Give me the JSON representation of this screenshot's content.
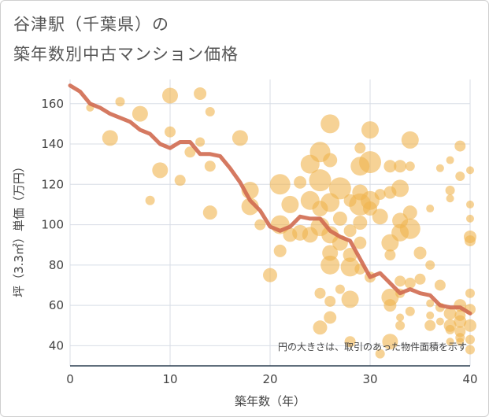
{
  "title_line1": "谷津駅（千葉県）の",
  "title_line2": "築年数別中古マンション価格",
  "chart_data": {
    "type": "scatter",
    "xlabel": "築年数（年）",
    "ylabel": "坪（3.3㎡）単価（万円）",
    "xlim": [
      0,
      40
    ],
    "ylim": [
      30,
      172
    ],
    "xticks": [
      0,
      10,
      20,
      30,
      40
    ],
    "yticks": [
      40,
      60,
      80,
      100,
      120,
      140,
      160
    ],
    "grid": true,
    "note": "円の大きさは、取引のあった物件面積を示す",
    "colors": {
      "points": "#f0b44e",
      "line": "#d06a50",
      "grid": "#d8dde6",
      "axis": "#2c3e50"
    },
    "series": [
      {
        "type": "scatter",
        "points": [
          {
            "x": 2,
            "y": 158,
            "s": 5
          },
          {
            "x": 4,
            "y": 143,
            "s": 10
          },
          {
            "x": 5,
            "y": 161,
            "s": 6
          },
          {
            "x": 7,
            "y": 155,
            "s": 10
          },
          {
            "x": 8,
            "y": 112,
            "s": 6
          },
          {
            "x": 9,
            "y": 127,
            "s": 10
          },
          {
            "x": 10,
            "y": 164,
            "s": 10
          },
          {
            "x": 10,
            "y": 146,
            "s": 7
          },
          {
            "x": 11,
            "y": 122,
            "s": 7
          },
          {
            "x": 12,
            "y": 136,
            "s": 7
          },
          {
            "x": 13,
            "y": 165,
            "s": 8
          },
          {
            "x": 13,
            "y": 141,
            "s": 6
          },
          {
            "x": 14,
            "y": 156,
            "s": 6
          },
          {
            "x": 14,
            "y": 129,
            "s": 7
          },
          {
            "x": 14,
            "y": 106,
            "s": 9
          },
          {
            "x": 17,
            "y": 143,
            "s": 10
          },
          {
            "x": 18,
            "y": 117,
            "s": 11
          },
          {
            "x": 18,
            "y": 109,
            "s": 11
          },
          {
            "x": 19,
            "y": 100,
            "s": 7
          },
          {
            "x": 20,
            "y": 75,
            "s": 9
          },
          {
            "x": 21,
            "y": 120,
            "s": 13
          },
          {
            "x": 21,
            "y": 100,
            "s": 12
          },
          {
            "x": 21,
            "y": 87,
            "s": 8
          },
          {
            "x": 22,
            "y": 110,
            "s": 11
          },
          {
            "x": 22,
            "y": 95,
            "s": 9
          },
          {
            "x": 23,
            "y": 121,
            "s": 8
          },
          {
            "x": 23,
            "y": 96,
            "s": 10
          },
          {
            "x": 24,
            "y": 130,
            "s": 12
          },
          {
            "x": 24,
            "y": 112,
            "s": 12
          },
          {
            "x": 24,
            "y": 95,
            "s": 10
          },
          {
            "x": 25,
            "y": 136,
            "s": 13
          },
          {
            "x": 25,
            "y": 122,
            "s": 14
          },
          {
            "x": 25,
            "y": 108,
            "s": 10
          },
          {
            "x": 25,
            "y": 99,
            "s": 12
          },
          {
            "x": 25,
            "y": 66,
            "s": 7
          },
          {
            "x": 25,
            "y": 49,
            "s": 9
          },
          {
            "x": 26,
            "y": 150,
            "s": 12
          },
          {
            "x": 26,
            "y": 132,
            "s": 9
          },
          {
            "x": 26,
            "y": 111,
            "s": 12
          },
          {
            "x": 26,
            "y": 95,
            "s": 11
          },
          {
            "x": 26,
            "y": 86,
            "s": 10
          },
          {
            "x": 26,
            "y": 80,
            "s": 12
          },
          {
            "x": 26,
            "y": 62,
            "s": 7
          },
          {
            "x": 26,
            "y": 54,
            "s": 8
          },
          {
            "x": 27,
            "y": 118,
            "s": 14
          },
          {
            "x": 27,
            "y": 103,
            "s": 9
          },
          {
            "x": 27,
            "y": 91,
            "s": 10
          },
          {
            "x": 27,
            "y": 68,
            "s": 6
          },
          {
            "x": 28,
            "y": 112,
            "s": 8
          },
          {
            "x": 28,
            "y": 97,
            "s": 8
          },
          {
            "x": 28,
            "y": 85,
            "s": 9
          },
          {
            "x": 28,
            "y": 79,
            "s": 12
          },
          {
            "x": 28,
            "y": 63,
            "s": 11
          },
          {
            "x": 28,
            "y": 42,
            "s": 7
          },
          {
            "x": 29,
            "y": 129,
            "s": 12
          },
          {
            "x": 29,
            "y": 116,
            "s": 10
          },
          {
            "x": 29,
            "y": 110,
            "s": 14
          },
          {
            "x": 29,
            "y": 101,
            "s": 9
          },
          {
            "x": 29,
            "y": 91,
            "s": 8
          },
          {
            "x": 29,
            "y": 78,
            "s": 7
          },
          {
            "x": 29,
            "y": 138,
            "s": 7
          },
          {
            "x": 30,
            "y": 147,
            "s": 11
          },
          {
            "x": 30,
            "y": 131,
            "s": 14
          },
          {
            "x": 30,
            "y": 112,
            "s": 12
          },
          {
            "x": 30,
            "y": 108,
            "s": 9
          },
          {
            "x": 30,
            "y": 74,
            "s": 7
          },
          {
            "x": 31,
            "y": 115,
            "s": 7
          },
          {
            "x": 31,
            "y": 104,
            "s": 10
          },
          {
            "x": 31,
            "y": 36,
            "s": 6
          },
          {
            "x": 32,
            "y": 129,
            "s": 8
          },
          {
            "x": 32,
            "y": 116,
            "s": 8
          },
          {
            "x": 32,
            "y": 91,
            "s": 11
          },
          {
            "x": 32,
            "y": 85,
            "s": 7
          },
          {
            "x": 32,
            "y": 64,
            "s": 11
          },
          {
            "x": 32,
            "y": 60,
            "s": 8
          },
          {
            "x": 32,
            "y": 42,
            "s": 10
          },
          {
            "x": 33,
            "y": 129,
            "s": 8
          },
          {
            "x": 33,
            "y": 118,
            "s": 11
          },
          {
            "x": 33,
            "y": 102,
            "s": 10
          },
          {
            "x": 33,
            "y": 96,
            "s": 11
          },
          {
            "x": 33,
            "y": 72,
            "s": 7
          },
          {
            "x": 33,
            "y": 66,
            "s": 6
          },
          {
            "x": 33,
            "y": 54,
            "s": 5
          },
          {
            "x": 33,
            "y": 50,
            "s": 6
          },
          {
            "x": 34,
            "y": 142,
            "s": 11
          },
          {
            "x": 34,
            "y": 129,
            "s": 6
          },
          {
            "x": 34,
            "y": 106,
            "s": 9
          },
          {
            "x": 34,
            "y": 98,
            "s": 13
          },
          {
            "x": 34,
            "y": 71,
            "s": 7
          },
          {
            "x": 34,
            "y": 57,
            "s": 6
          },
          {
            "x": 35,
            "y": 86,
            "s": 8
          },
          {
            "x": 35,
            "y": 73,
            "s": 7
          },
          {
            "x": 36,
            "y": 108,
            "s": 5
          },
          {
            "x": 36,
            "y": 80,
            "s": 6
          },
          {
            "x": 36,
            "y": 61,
            "s": 5
          },
          {
            "x": 36,
            "y": 50,
            "s": 7
          },
          {
            "x": 36,
            "y": 55,
            "s": 5
          },
          {
            "x": 37,
            "y": 128,
            "s": 5
          },
          {
            "x": 37,
            "y": 70,
            "s": 7
          },
          {
            "x": 37,
            "y": 59,
            "s": 6
          },
          {
            "x": 37,
            "y": 52,
            "s": 5
          },
          {
            "x": 38,
            "y": 132,
            "s": 5
          },
          {
            "x": 38,
            "y": 117,
            "s": 6
          },
          {
            "x": 38,
            "y": 113,
            "s": 5
          },
          {
            "x": 38,
            "y": 56,
            "s": 8
          },
          {
            "x": 38,
            "y": 50,
            "s": 8
          },
          {
            "x": 38,
            "y": 48,
            "s": 6
          },
          {
            "x": 38,
            "y": 42,
            "s": 5
          },
          {
            "x": 39,
            "y": 139,
            "s": 7
          },
          {
            "x": 39,
            "y": 124,
            "s": 6
          },
          {
            "x": 39,
            "y": 60,
            "s": 8
          },
          {
            "x": 39,
            "y": 55,
            "s": 7
          },
          {
            "x": 39,
            "y": 52,
            "s": 8
          },
          {
            "x": 39,
            "y": 47,
            "s": 7
          },
          {
            "x": 39,
            "y": 44,
            "s": 6
          },
          {
            "x": 39,
            "y": 42,
            "s": 5
          },
          {
            "x": 40,
            "y": 127,
            "s": 5
          },
          {
            "x": 40,
            "y": 110,
            "s": 5
          },
          {
            "x": 40,
            "y": 103,
            "s": 5
          },
          {
            "x": 40,
            "y": 94,
            "s": 8
          },
          {
            "x": 40,
            "y": 92,
            "s": 7
          },
          {
            "x": 40,
            "y": 66,
            "s": 6
          },
          {
            "x": 40,
            "y": 58,
            "s": 7
          },
          {
            "x": 40,
            "y": 50,
            "s": 8
          },
          {
            "x": 40,
            "y": 43,
            "s": 6
          },
          {
            "x": 40,
            "y": 38,
            "s": 6
          }
        ]
      },
      {
        "type": "line",
        "x": [
          0,
          1,
          2,
          3,
          4,
          5,
          6,
          7,
          8,
          9,
          10,
          11,
          12,
          13,
          14,
          15,
          16,
          17,
          18,
          19,
          20,
          21,
          22,
          23,
          24,
          25,
          26,
          27,
          28,
          29,
          30,
          31,
          32,
          33,
          34,
          35,
          36,
          37,
          38,
          39,
          40
        ],
        "y": [
          169,
          166,
          160,
          158,
          155,
          153,
          151,
          147,
          145,
          140,
          138,
          141,
          141,
          135,
          135,
          134,
          128,
          121,
          112,
          107,
          99,
          97,
          99,
          104,
          103,
          103,
          97,
          94,
          92,
          83,
          74,
          76,
          71,
          66,
          68,
          66,
          65,
          60,
          59,
          59,
          56
        ]
      }
    ]
  }
}
